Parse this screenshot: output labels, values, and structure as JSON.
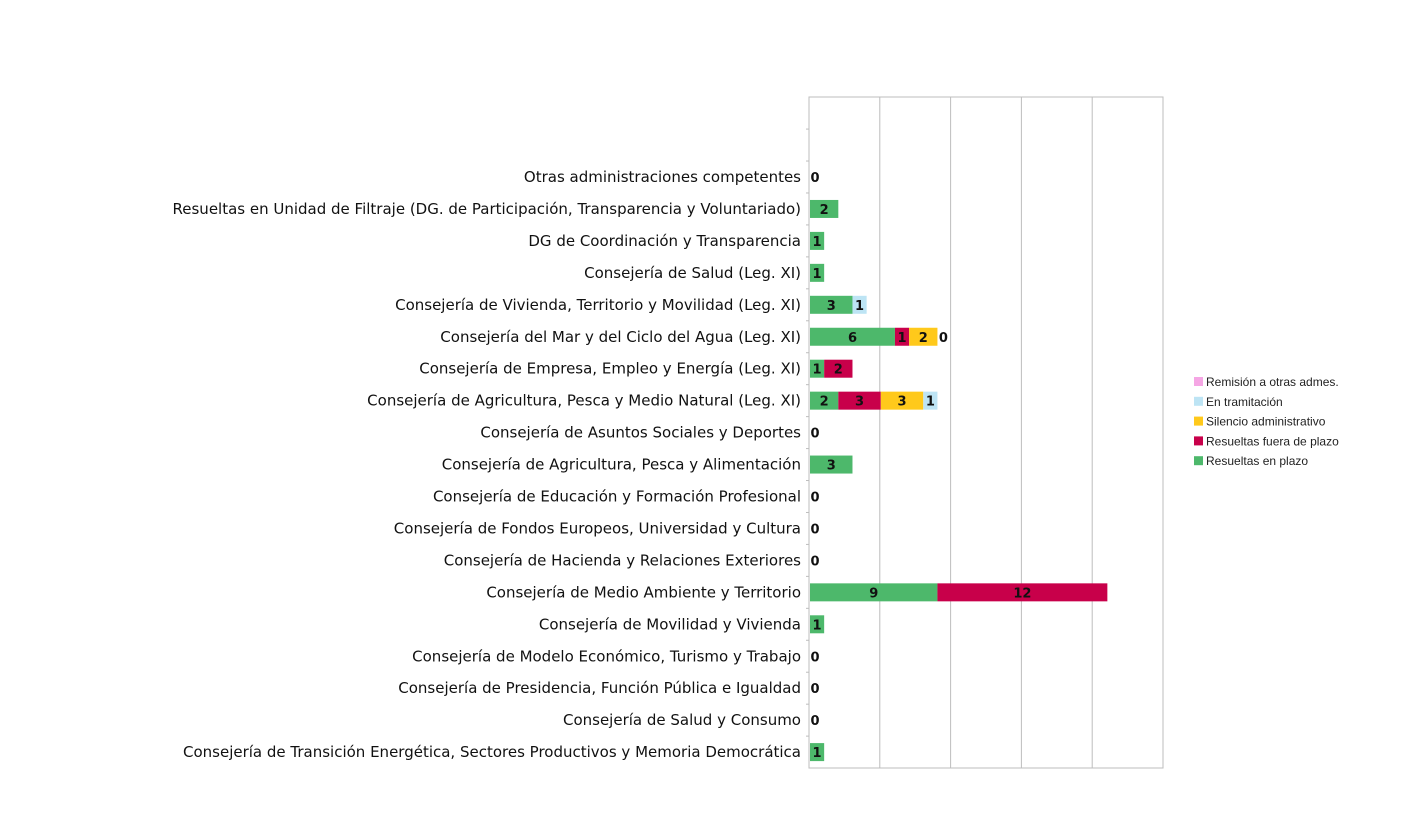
{
  "chart_data": {
    "type": "bar",
    "orientation": "horizontal",
    "stacked": true,
    "categories": [
      "Otras administraciones competentes",
      "Resueltas en Unidad de Filtraje (DG. de Participación, Transparencia y Voluntariado)",
      "DG  de Coordinación y Transparencia",
      "Consejería de Salud (Leg. XI)",
      "Consejería de Vivienda, Territorio y Movilidad  (Leg. XI)",
      "Consejería del Mar y del Ciclo del Agua (Leg. XI)",
      "Consejería de Empresa, Empleo y Energía (Leg. XI)",
      "Consejería de Agricultura, Pesca y Medio Natural (Leg. XI)",
      "Consejería de Asuntos Sociales y Deportes",
      "Consejería de Agricultura, Pesca y  Alimentación",
      "Consejería de Educación y Formación Profesional",
      "Consejería de Fondos Europeos, Universidad y Cultura",
      "Consejería de Hacienda y Relaciones Exteriores",
      "Consejería de Medio Ambiente y Territorio",
      "Consejería de Movilidad y Vivienda",
      "Consejería de Modelo Económico, Turismo y Trabajo",
      "Consejería de Presidencia, Función Pública e Igualdad",
      "Consejería de Salud y Consumo",
      "Consejería de Transición Energética, Sectores Productivos y Memoria Democrática"
    ],
    "series": [
      {
        "name": "Resueltas en plazo",
        "color": "#4db86b",
        "values": [
          0,
          2,
          1,
          1,
          3,
          6,
          1,
          2,
          0,
          3,
          0,
          0,
          0,
          9,
          1,
          0,
          0,
          0,
          1
        ]
      },
      {
        "name": "Resueltas fuera de plazo",
        "color": "#c8004a",
        "values": [
          0,
          0,
          0,
          0,
          0,
          1,
          2,
          3,
          0,
          0,
          0,
          0,
          0,
          12,
          0,
          0,
          0,
          0,
          0
        ]
      },
      {
        "name": "Silencio administrativo",
        "color": "#ffc91b",
        "values": [
          0,
          0,
          0,
          0,
          0,
          2,
          0,
          3,
          0,
          0,
          0,
          0,
          0,
          0,
          0,
          0,
          0,
          0,
          0
        ]
      },
      {
        "name": "En tramitación",
        "color": "#bde4f4",
        "values": [
          0,
          0,
          0,
          0,
          1,
          0,
          0,
          1,
          0,
          0,
          0,
          0,
          0,
          0,
          0,
          0,
          0,
          0,
          0
        ]
      },
      {
        "name": "Remisión a otras admes.",
        "color": "#f5a6e4",
        "values": [
          0,
          0,
          0,
          0,
          0,
          0,
          0,
          0,
          0,
          0,
          0,
          0,
          0,
          0,
          0,
          0,
          0,
          0,
          0
        ]
      }
    ],
    "data_labels": [
      [
        "0"
      ],
      [
        "2"
      ],
      [
        "1"
      ],
      [
        "1"
      ],
      [
        "3",
        "1"
      ],
      [
        "6",
        "1",
        "2",
        "0"
      ],
      [
        "1",
        "2"
      ],
      [
        "2",
        "3",
        "3",
        "1"
      ],
      [
        "0"
      ],
      [
        "3"
      ],
      [
        "0"
      ],
      [
        "0"
      ],
      [
        "0"
      ],
      [
        "9",
        "12"
      ],
      [
        "1"
      ],
      [
        "0"
      ],
      [
        "0"
      ],
      [
        "0"
      ],
      [
        "1"
      ]
    ],
    "xlim": [
      0,
      25
    ],
    "x_tick_labels_shown": false,
    "grid": true,
    "legend": {
      "placement": "right",
      "order": [
        "Remisión a otras admes.",
        "En tramitación",
        "Silencio administrativo",
        "Resueltas fuera de plazo",
        "Resueltas en plazo"
      ]
    },
    "title": "",
    "xlabel": "",
    "ylabel": ""
  }
}
